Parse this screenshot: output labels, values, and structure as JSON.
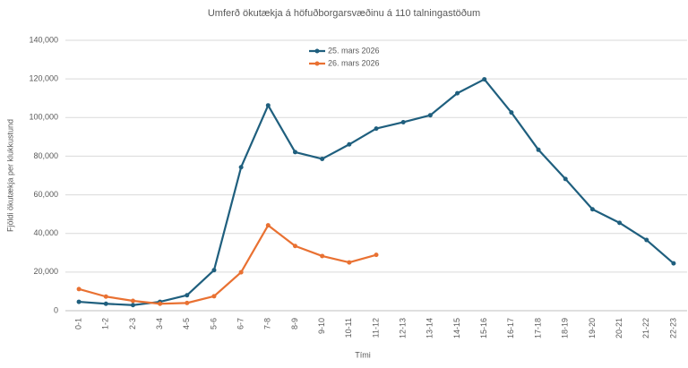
{
  "chart_data": {
    "type": "line",
    "title": "Umferð ökutækja á höfuðborgarsvæðinu á 110 talningastöðum",
    "x_label": "Tími",
    "y_label": "Fjöldi ökutækja per klukkustund",
    "categories": [
      "0-1",
      "1-2",
      "2-3",
      "3-4",
      "4-5",
      "5-6",
      "6-7",
      "7-8",
      "8-9",
      "9-10",
      "10-11",
      "11-12",
      "12-13",
      "13-14",
      "14-15",
      "15-16",
      "16-17",
      "17-18",
      "18-19",
      "19-20",
      "20-21",
      "21-22",
      "22-23"
    ],
    "series": [
      {
        "name": "25. mars 2026",
        "color": "#1f5f7e",
        "values": [
          4600,
          3600,
          2900,
          4600,
          8000,
          21000,
          74300,
          106300,
          82100,
          78600,
          86100,
          94300,
          97600,
          101200,
          112600,
          119800,
          102600,
          83300,
          68200,
          52500,
          45500,
          36600,
          24500
        ]
      },
      {
        "name": "26. mars 2026",
        "color": "#e97132",
        "values": [
          11200,
          7300,
          5100,
          3600,
          4000,
          7500,
          19900,
          44200,
          33500,
          28300,
          25000,
          28900,
          null,
          null,
          null,
          null,
          null,
          null,
          null,
          null,
          null,
          null,
          null
        ]
      }
    ],
    "ylim": [
      0,
      140000
    ],
    "yticks": [
      0,
      {
        "value": 20000,
        "label": "20,000"
      },
      {
        "value": 40000,
        "label": "40,000"
      },
      {
        "value": 60000,
        "label": "60,000"
      },
      {
        "value": 80000,
        "label": "80,000"
      },
      {
        "value": 100000,
        "label": "100,000"
      },
      {
        "value": 120000,
        "label": "120,000"
      },
      {
        "value": 140000,
        "label": "140,000"
      }
    ],
    "grid": true
  }
}
